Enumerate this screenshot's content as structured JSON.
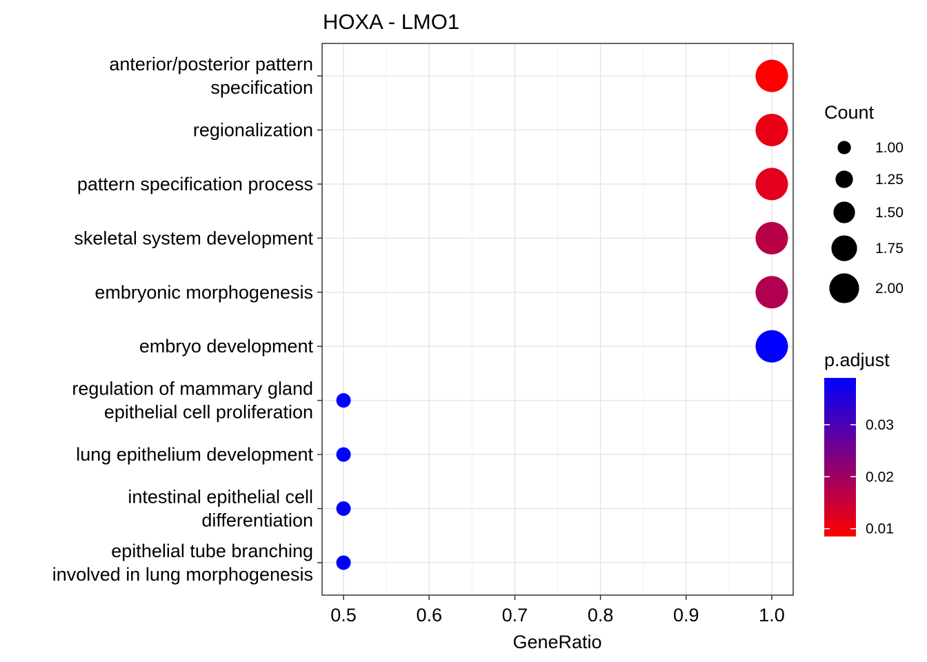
{
  "chart_data": {
    "type": "scatter",
    "title": "HOXA - LMO1",
    "xlabel": "GeneRatio",
    "ylabel": "",
    "xlim": [
      0.475,
      1.025
    ],
    "x_ticks": [
      "0.5",
      "0.6",
      "0.7",
      "0.8",
      "0.9",
      "1.0"
    ],
    "grid": true,
    "categories": [
      "anterior/posterior pattern\nspecification",
      "regionalization",
      "pattern specification process",
      "skeletal system development",
      "embryonic morphogenesis",
      "embryo development",
      "regulation of mammary gland\nepithelial cell proliferation",
      "lung epithelium development",
      "intestinal epithelial cell\ndifferentiation",
      "epithelial tube branching\ninvolved in lung morphogenesis"
    ],
    "points": [
      {
        "term": "anterior/posterior pattern specification",
        "GeneRatio": 1.0,
        "Count": 2,
        "p_adjust": 0.0085
      },
      {
        "term": "regionalization",
        "GeneRatio": 1.0,
        "Count": 2,
        "p_adjust": 0.011
      },
      {
        "term": "pattern specification process",
        "GeneRatio": 1.0,
        "Count": 2,
        "p_adjust": 0.012
      },
      {
        "term": "skeletal system development",
        "GeneRatio": 1.0,
        "Count": 2,
        "p_adjust": 0.017
      },
      {
        "term": "embryonic morphogenesis",
        "GeneRatio": 1.0,
        "Count": 2,
        "p_adjust": 0.018
      },
      {
        "term": "embryo development",
        "GeneRatio": 1.0,
        "Count": 2,
        "p_adjust": 0.039
      },
      {
        "term": "regulation of mammary gland epithelial cell proliferation",
        "GeneRatio": 0.5,
        "Count": 1,
        "p_adjust": 0.039
      },
      {
        "term": "lung epithelium development",
        "GeneRatio": 0.5,
        "Count": 1,
        "p_adjust": 0.039
      },
      {
        "term": "intestinal epithelial cell differentiation",
        "GeneRatio": 0.5,
        "Count": 1,
        "p_adjust": 0.039
      },
      {
        "term": "epithelial tube branching involved in lung morphogenesis",
        "GeneRatio": 0.5,
        "Count": 1,
        "p_adjust": 0.039
      }
    ],
    "legend_size": {
      "title": "Count",
      "entries": [
        {
          "label": "1.00",
          "value": 1.0
        },
        {
          "label": "1.25",
          "value": 1.25
        },
        {
          "label": "1.50",
          "value": 1.5
        },
        {
          "label": "1.75",
          "value": 1.75
        },
        {
          "label": "2.00",
          "value": 2.0
        }
      ]
    },
    "legend_color": {
      "title": "p.adjust",
      "low_color": "#ff0000",
      "high_color": "#0000ff",
      "range": [
        0.0085,
        0.039
      ],
      "ticks": [
        {
          "label": "0.03",
          "value": 0.03
        },
        {
          "label": "0.02",
          "value": 0.02
        },
        {
          "label": "0.01",
          "value": 0.01
        }
      ]
    },
    "legend_position": "right"
  }
}
